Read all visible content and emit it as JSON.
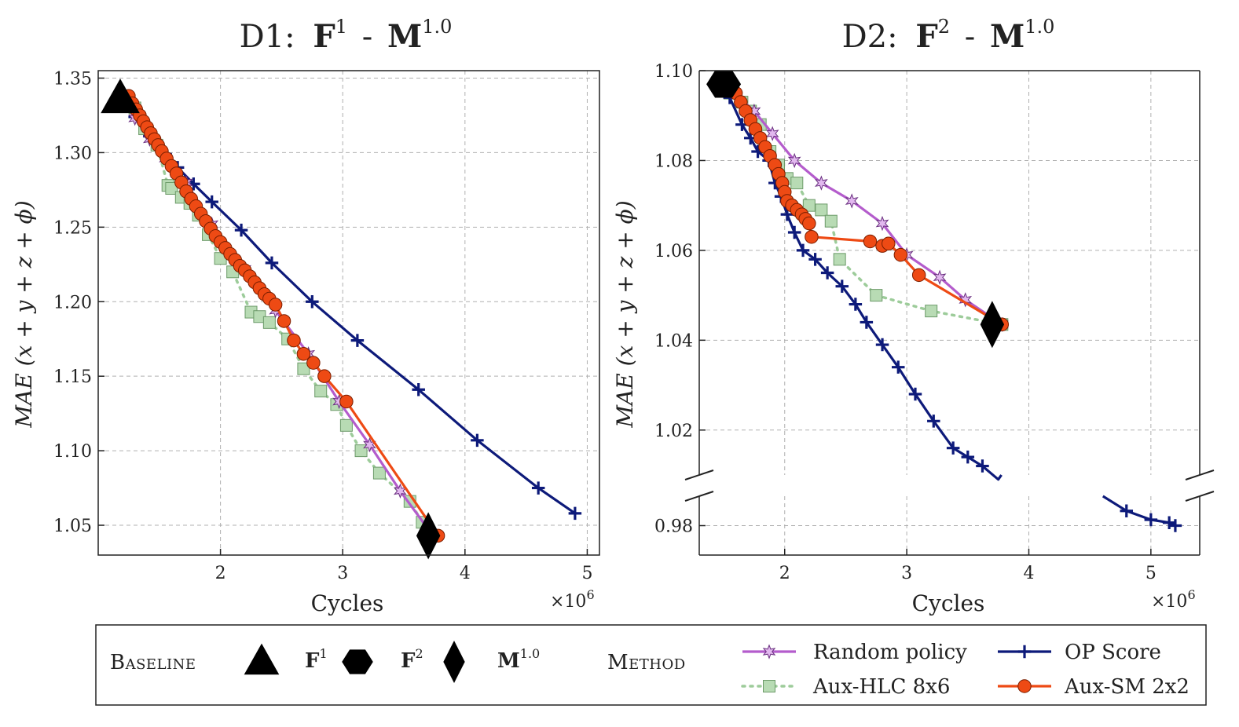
{
  "figure": {
    "baseline_label": "Baseline",
    "method_label": "Method",
    "baseline_markers": [
      {
        "label": "F",
        "sup": "1",
        "marker": "triangle"
      },
      {
        "label": "F",
        "sup": "2",
        "marker": "hexagon"
      },
      {
        "label": "M",
        "sup": "1.0",
        "marker": "diamond"
      }
    ],
    "methods": [
      {
        "name": "Random policy",
        "color": "#b45ccc",
        "marker": "star",
        "line": "solid"
      },
      {
        "name": "Aux-HLC 8x6",
        "color": "#9dcc9a",
        "marker": "square",
        "line": "dotted"
      },
      {
        "name": "OP Score",
        "color": "#0d1a7a",
        "marker": "plus",
        "line": "solid"
      },
      {
        "name": "Aux-SM 2x2",
        "color": "#ee4a14",
        "marker": "circle",
        "line": "solid"
      }
    ]
  },
  "chart_data": [
    {
      "type": "line",
      "title_prefix": "D1:",
      "title_parts": [
        {
          "base": "F",
          "sup": "1"
        },
        {
          "base": "M",
          "sup": "1.0"
        }
      ],
      "xlabel": "Cycles",
      "x_multiplier": "×10",
      "x_multiplier_exp": "6",
      "ylabel": "MAE (x + y + z + ϕ)",
      "xlim": [
        1.0,
        5.1
      ],
      "ylim": [
        1.03,
        1.355
      ],
      "xticks": [
        2,
        3,
        4,
        5
      ],
      "yticks": [
        1.05,
        1.1,
        1.15,
        1.2,
        1.25,
        1.3,
        1.35
      ],
      "ytick_labels": [
        "1.05",
        "1.10",
        "1.15",
        "1.20",
        "1.25",
        "1.30",
        "1.35"
      ],
      "baselines": [
        {
          "label": "F1",
          "marker": "triangle",
          "x": 1.18,
          "y": 1.336
        },
        {
          "label": "M1.0",
          "marker": "diamond",
          "x": 3.7,
          "y": 1.043
        }
      ],
      "series": [
        {
          "name": "OP Score",
          "x": [
            1.22,
            1.3,
            1.42,
            1.55,
            1.65,
            1.78,
            1.93,
            2.17,
            2.42,
            2.75,
            3.12,
            3.62,
            4.1,
            4.6,
            4.9
          ],
          "y": [
            1.334,
            1.324,
            1.311,
            1.299,
            1.29,
            1.279,
            1.267,
            1.248,
            1.226,
            1.2,
            1.174,
            1.141,
            1.107,
            1.075,
            1.058
          ]
        },
        {
          "name": "Random policy",
          "x": [
            1.22,
            1.3,
            1.42,
            1.55,
            1.72,
            1.93,
            2.2,
            2.45,
            2.72,
            2.97,
            3.22,
            3.47,
            3.72
          ],
          "y": [
            1.334,
            1.323,
            1.309,
            1.296,
            1.28,
            1.252,
            1.222,
            1.194,
            1.165,
            1.133,
            1.104,
            1.073,
            1.045
          ]
        },
        {
          "name": "Aux-HLC 8x6",
          "x": [
            1.3,
            1.38,
            1.48,
            1.57,
            1.6,
            1.68,
            1.75,
            1.82,
            1.9,
            2.0,
            2.1,
            2.25,
            2.32,
            2.4,
            2.55,
            2.68,
            2.82,
            2.95,
            3.03,
            3.15,
            3.3,
            3.55,
            3.65
          ],
          "y": [
            1.33,
            1.316,
            1.305,
            1.278,
            1.276,
            1.27,
            1.266,
            1.258,
            1.245,
            1.229,
            1.22,
            1.193,
            1.19,
            1.186,
            1.175,
            1.155,
            1.14,
            1.131,
            1.117,
            1.1,
            1.085,
            1.066,
            1.052
          ]
        },
        {
          "name": "Aux-SM 2x2",
          "x": [
            1.25,
            1.28,
            1.31,
            1.34,
            1.37,
            1.4,
            1.43,
            1.46,
            1.49,
            1.52,
            1.56,
            1.6,
            1.64,
            1.68,
            1.72,
            1.76,
            1.8,
            1.84,
            1.88,
            1.92,
            1.96,
            2.0,
            2.04,
            2.08,
            2.12,
            2.16,
            2.2,
            2.24,
            2.28,
            2.32,
            2.36,
            2.4,
            2.45,
            2.52,
            2.6,
            2.68,
            2.76,
            2.85,
            3.03,
            3.78
          ],
          "y": [
            1.338,
            1.333,
            1.329,
            1.325,
            1.321,
            1.317,
            1.313,
            1.309,
            1.305,
            1.301,
            1.296,
            1.291,
            1.286,
            1.28,
            1.274,
            1.269,
            1.264,
            1.259,
            1.254,
            1.249,
            1.244,
            1.24,
            1.236,
            1.232,
            1.228,
            1.224,
            1.221,
            1.217,
            1.213,
            1.209,
            1.205,
            1.202,
            1.198,
            1.187,
            1.174,
            1.165,
            1.159,
            1.15,
            1.133,
            1.043
          ]
        }
      ]
    },
    {
      "type": "line",
      "title_prefix": "D2:",
      "title_parts": [
        {
          "base": "F",
          "sup": "2"
        },
        {
          "base": "M",
          "sup": "1.0"
        }
      ],
      "xlabel": "Cycles",
      "x_multiplier": "×10",
      "x_multiplier_exp": "6",
      "ylabel": "MAE (x + y + z + ϕ)",
      "xlim": [
        1.3,
        5.4
      ],
      "ylim_upper": [
        1.01,
        1.1
      ],
      "ylim_lower": [
        0.975,
        0.985
      ],
      "axis_break": true,
      "xticks": [
        2,
        3,
        4,
        5
      ],
      "yticks": [
        0.98,
        1.02,
        1.04,
        1.06,
        1.08,
        1.1
      ],
      "ytick_labels": [
        "0.98",
        "1.02",
        "1.04",
        "1.06",
        "1.08",
        "1.10"
      ],
      "baselines": [
        {
          "label": "F2",
          "marker": "hexagon",
          "x": 1.5,
          "y": 1.097
        },
        {
          "label": "M1.0",
          "marker": "diamond",
          "x": 3.7,
          "y": 1.0435
        }
      ],
      "series": [
        {
          "name": "OP Score",
          "x": [
            1.55,
            1.65,
            1.72,
            1.78,
            1.87,
            1.92,
            1.97,
            2.02,
            2.08,
            2.15,
            2.25,
            2.35,
            2.47,
            2.58,
            2.67,
            2.8,
            2.93,
            3.07,
            3.22,
            3.38,
            3.5,
            3.62,
            3.75,
            4.8,
            5.0,
            5.15,
            5.2
          ],
          "y": [
            1.094,
            1.088,
            1.085,
            1.082,
            1.08,
            1.075,
            1.072,
            1.068,
            1.064,
            1.06,
            1.058,
            1.055,
            1.052,
            1.048,
            1.044,
            1.039,
            1.034,
            1.028,
            1.022,
            1.016,
            1.014,
            1.012,
            1.009,
            0.9825,
            0.981,
            0.9805,
            0.98
          ]
        },
        {
          "name": "Random policy",
          "x": [
            1.5,
            1.75,
            1.9,
            2.08,
            2.3,
            2.55,
            2.8,
            3.0,
            3.27,
            3.48,
            3.78
          ],
          "y": [
            1.097,
            1.091,
            1.086,
            1.08,
            1.075,
            1.071,
            1.066,
            1.059,
            1.054,
            1.049,
            1.0435
          ]
        },
        {
          "name": "Aux-HLC 8x6",
          "x": [
            1.55,
            1.65,
            1.72,
            1.8,
            1.88,
            1.95,
            2.02,
            2.1,
            2.2,
            2.3,
            2.38,
            2.45,
            2.75,
            3.2,
            3.78
          ],
          "y": [
            1.095,
            1.093,
            1.091,
            1.088,
            1.082,
            1.079,
            1.076,
            1.075,
            1.07,
            1.069,
            1.0665,
            1.058,
            1.05,
            1.0465,
            1.0435
          ]
        },
        {
          "name": "Aux-SM 2x2",
          "x": [
            1.55,
            1.6,
            1.64,
            1.68,
            1.72,
            1.76,
            1.8,
            1.84,
            1.88,
            1.92,
            1.95,
            1.98,
            2.0,
            2.02,
            2.06,
            2.1,
            2.14,
            2.17,
            2.2,
            2.22,
            2.7,
            2.8,
            2.85,
            2.95,
            3.1,
            3.78
          ],
          "y": [
            1.097,
            1.095,
            1.093,
            1.091,
            1.089,
            1.087,
            1.085,
            1.083,
            1.081,
            1.079,
            1.077,
            1.075,
            1.073,
            1.071,
            1.07,
            1.069,
            1.068,
            1.067,
            1.066,
            1.063,
            1.062,
            1.061,
            1.0615,
            1.059,
            1.0545,
            1.0435
          ]
        }
      ]
    }
  ]
}
